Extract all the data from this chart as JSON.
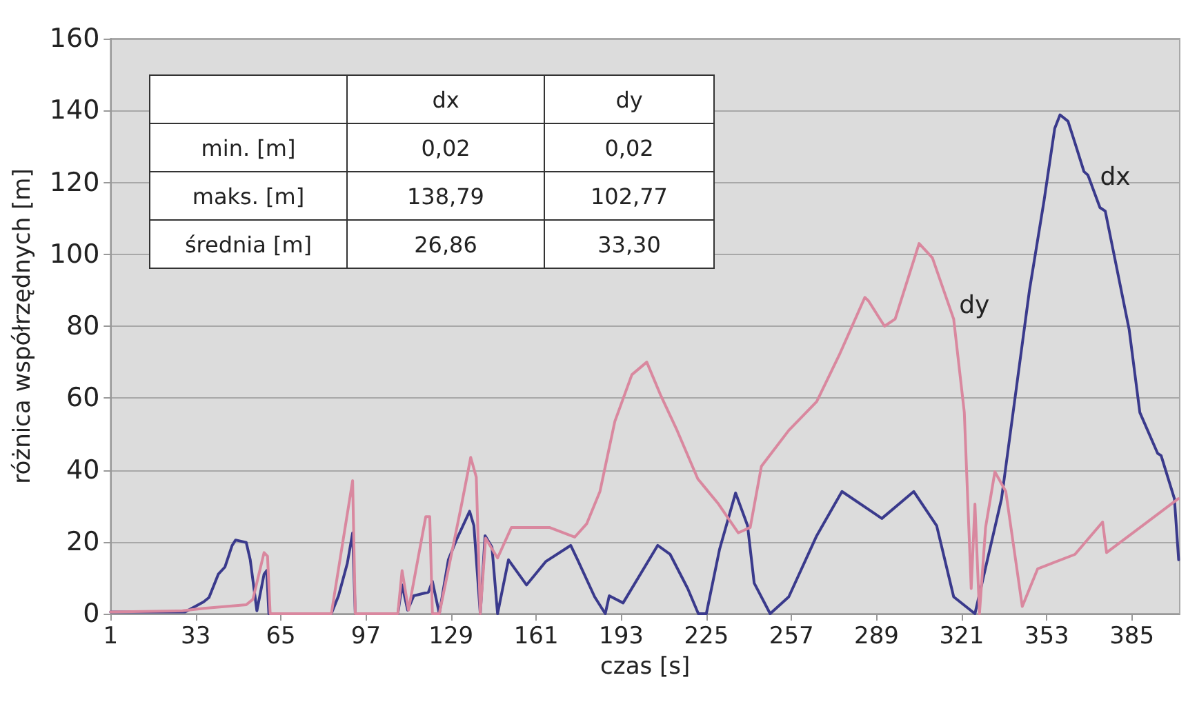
{
  "chart_data": {
    "type": "line",
    "xlabel": "czas [s]",
    "ylabel": "różnica współrzędnych [m]",
    "xlim": [
      1,
      403
    ],
    "xticks": [
      1,
      33,
      65,
      97,
      129,
      161,
      193,
      225,
      257,
      289,
      321,
      353,
      385
    ],
    "ylim": [
      0,
      160
    ],
    "yticks": [
      0,
      20,
      40,
      60,
      80,
      100,
      120,
      140,
      160
    ],
    "grid": "y",
    "legend": false,
    "marker": "none",
    "line_style": "solid",
    "annotations": [
      "dx",
      "dy",
      "min. [m]",
      "0,02",
      "0,02",
      "maks. [m]",
      "138,79",
      "102,77",
      "średnia [m]",
      "26,86",
      "33,30"
    ],
    "series": [
      {
        "name": "dx",
        "color": "#3a3a8c",
        "x": [
          1,
          29,
          31,
          36,
          38,
          41.5,
          44,
          46.7,
          48,
          52,
          53.5,
          56,
          58.7,
          59.7,
          60.5,
          84,
          86.7,
          90,
          92,
          93,
          109,
          110.6,
          112.7,
          115,
          120.5,
          122,
          124.6,
          128,
          131,
          136,
          137.6,
          140,
          141.8,
          144.4,
          146.5,
          150.6,
          157.4,
          164.6,
          174,
          176.6,
          183,
          187,
          188.5,
          193.7,
          206.7,
          211.4,
          218,
          222,
          225,
          230,
          236,
          240.5,
          243,
          249,
          256,
          266.5,
          276,
          291,
          303,
          311.6,
          318,
          326,
          336,
          346.5,
          352,
          356,
          358,
          361,
          363.6,
          367,
          368.5,
          373,
          375,
          384,
          388,
          394.7,
          396,
          401,
          402.6
        ],
        "values": [
          0.5,
          0.5,
          1.3,
          3.3,
          4.5,
          11,
          13,
          19,
          20.5,
          19.8,
          15,
          0.8,
          11,
          12,
          0,
          0,
          5,
          14,
          22.5,
          0,
          0,
          8,
          1,
          5,
          6,
          9,
          0,
          15,
          20.5,
          28.5,
          24.5,
          0,
          21.7,
          18.5,
          0,
          15,
          8,
          14.5,
          19,
          15,
          4.7,
          0,
          5,
          3,
          19,
          16.5,
          7,
          0,
          0,
          18,
          33.6,
          24.5,
          8.5,
          0,
          4.7,
          21.7,
          34,
          26.5,
          34,
          24.5,
          4.7,
          0,
          32,
          90,
          115,
          135,
          138.8,
          137,
          131,
          123,
          122,
          113,
          112,
          79,
          56,
          44.6,
          44,
          32,
          15
        ]
      },
      {
        "name": "dy",
        "color": "#d9889f",
        "x": [
          1,
          28,
          36,
          52,
          54.5,
          58.7,
          60,
          61,
          84,
          92,
          93,
          109,
          110.6,
          113,
          119.5,
          121,
          122,
          124.6,
          133,
          136.4,
          138.5,
          140,
          142,
          146.5,
          151.7,
          166,
          175.5,
          180,
          185,
          190.6,
          197,
          202.6,
          207.7,
          214,
          221.8,
          229.6,
          237,
          241.5,
          245.7,
          256,
          266.5,
          275,
          284.6,
          286,
          292,
          296,
          305,
          310,
          318,
          322,
          324.6,
          326,
          327.7,
          330,
          333.5,
          337.6,
          343.8,
          349.6,
          363.6,
          374,
          375.5,
          402.5
        ],
        "values": [
          0.5,
          0.8,
          1.5,
          2.5,
          4,
          17,
          16,
          0,
          0,
          37,
          0,
          0,
          12,
          1,
          27,
          27,
          0,
          0,
          30.5,
          43.5,
          38,
          0,
          21,
          15.5,
          24,
          24,
          21.3,
          25,
          34,
          53.5,
          66.5,
          70,
          61,
          51,
          37.5,
          30.5,
          22.5,
          24,
          41,
          51,
          59,
          72,
          88,
          87,
          80,
          82,
          103,
          99,
          82,
          56,
          7,
          30.5,
          0,
          24,
          39.5,
          34,
          2,
          12.5,
          16.5,
          25.5,
          17,
          32
        ]
      }
    ]
  }
}
